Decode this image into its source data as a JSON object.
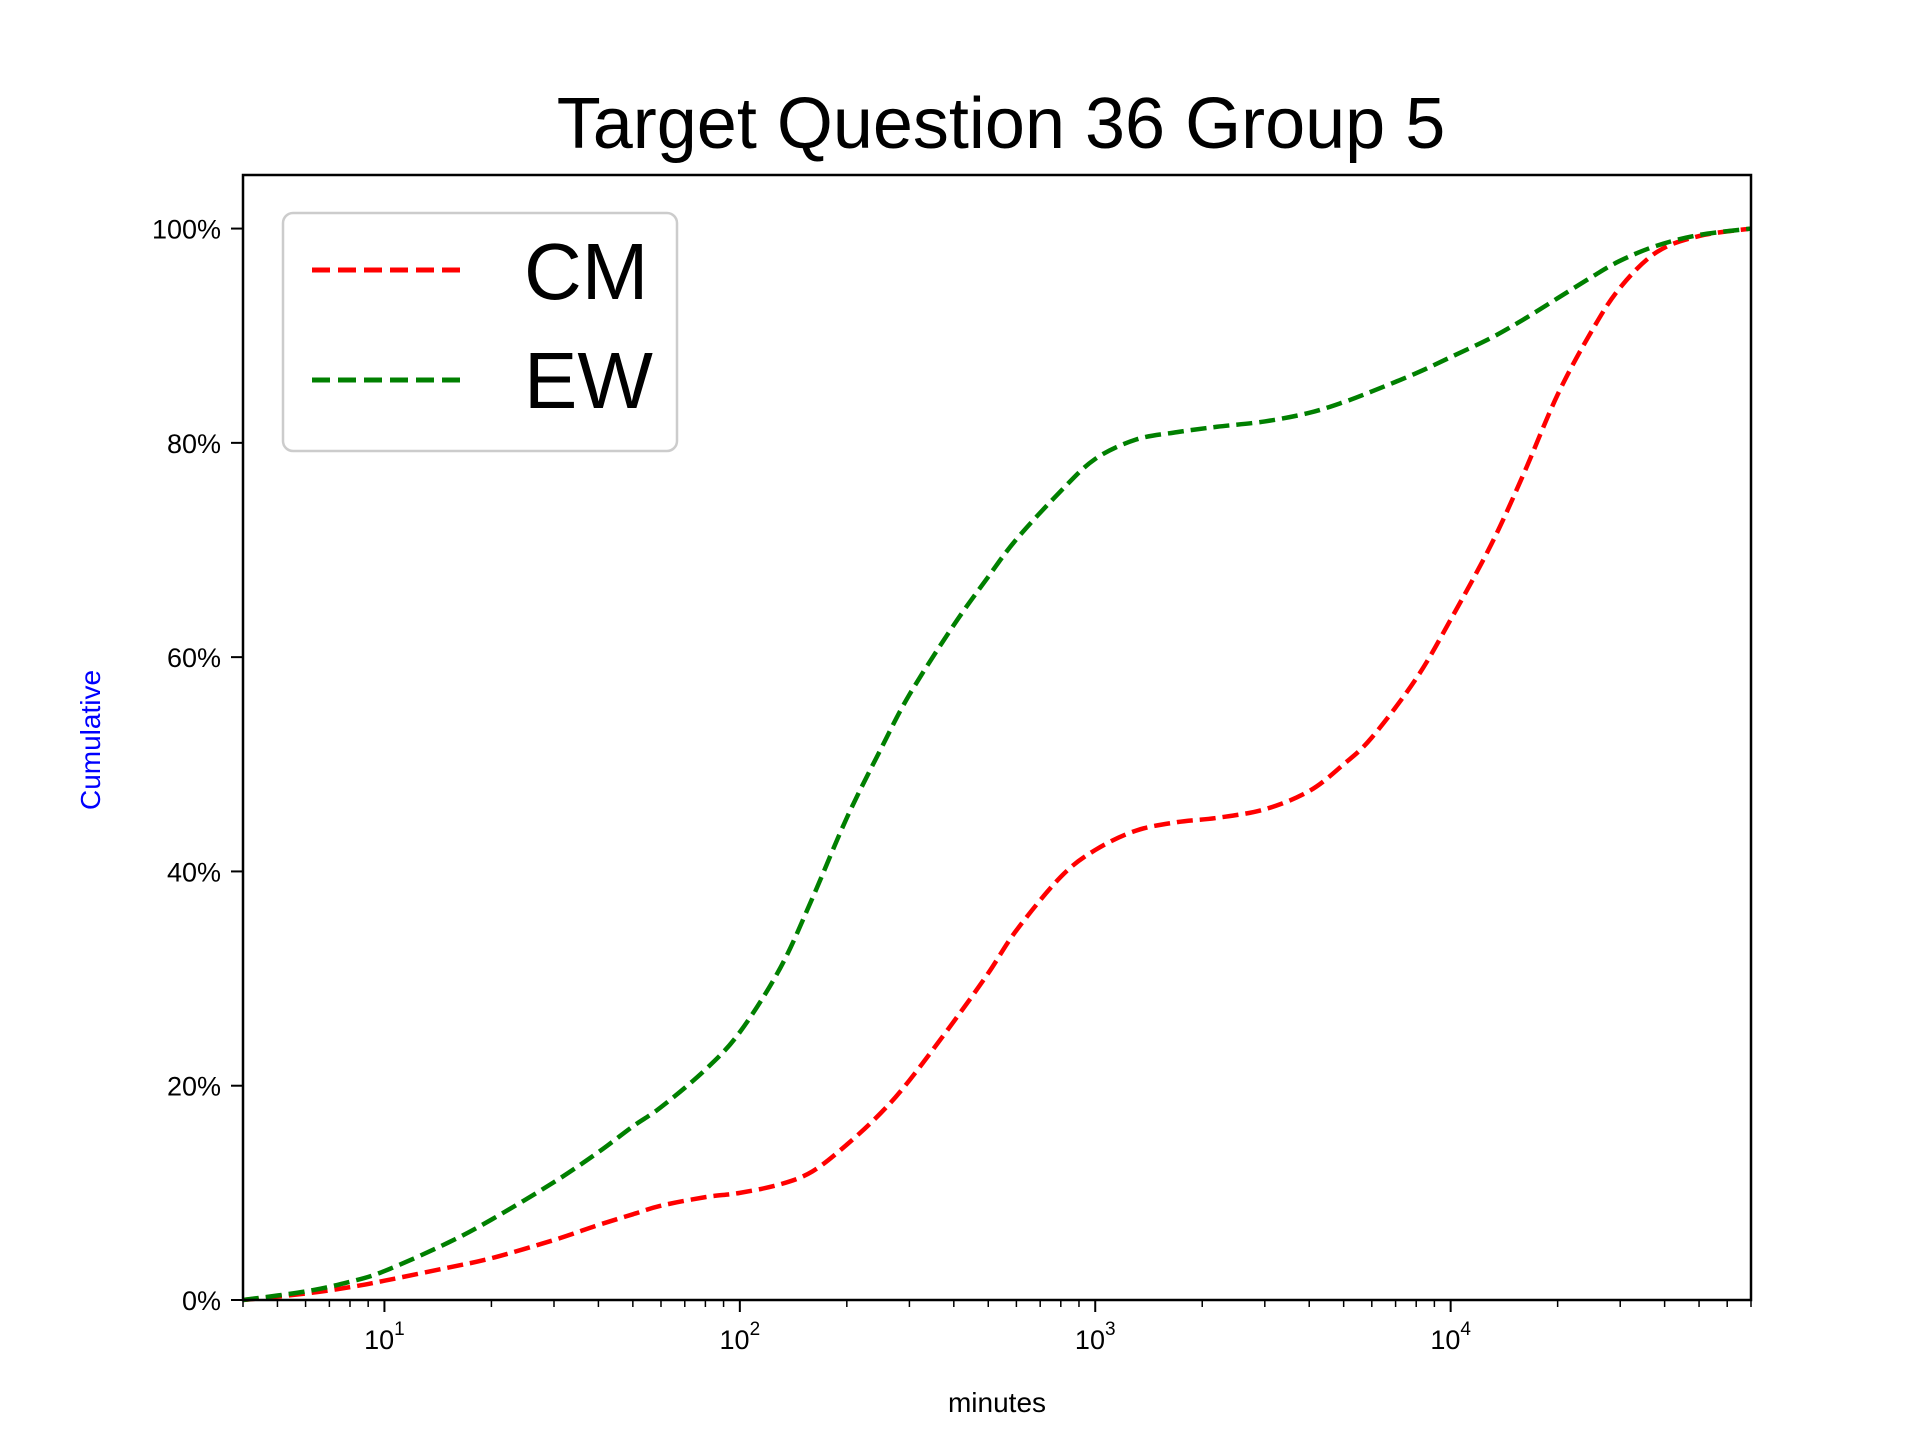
{
  "chart_data": {
    "type": "line",
    "title": "Target Question 36 Group 5",
    "xlabel": "minutes",
    "ylabel": "Cumulative",
    "ylabel_color": "#0000ff",
    "x_scale": "log",
    "xlim": [
      4,
      70000
    ],
    "ylim": [
      0,
      105
    ],
    "x_tick_labels": [
      {
        "value": 10,
        "base": "10",
        "exp": "1"
      },
      {
        "value": 100,
        "base": "10",
        "exp": "2"
      },
      {
        "value": 1000,
        "base": "10",
        "exp": "3"
      },
      {
        "value": 10000,
        "base": "10",
        "exp": "4"
      }
    ],
    "y_ticks": [
      {
        "value": 0,
        "label": "0%"
      },
      {
        "value": 20,
        "label": "20%"
      },
      {
        "value": 40,
        "label": "40%"
      },
      {
        "value": 60,
        "label": "60%"
      },
      {
        "value": 80,
        "label": "80%"
      },
      {
        "value": 100,
        "label": "100%"
      }
    ],
    "grid": false,
    "legend_position": "upper-left",
    "series": [
      {
        "name": "CM",
        "color": "#ff0000",
        "line_style": "dashed",
        "points": [
          {
            "x": 4,
            "y": 0
          },
          {
            "x": 6,
            "y": 0.6
          },
          {
            "x": 8,
            "y": 1.2
          },
          {
            "x": 10,
            "y": 1.8
          },
          {
            "x": 15,
            "y": 3
          },
          {
            "x": 20,
            "y": 3.9
          },
          {
            "x": 30,
            "y": 5.6
          },
          {
            "x": 40,
            "y": 7
          },
          {
            "x": 50,
            "y": 8
          },
          {
            "x": 60,
            "y": 8.8
          },
          {
            "x": 80,
            "y": 9.6
          },
          {
            "x": 100,
            "y": 10
          },
          {
            "x": 130,
            "y": 10.8
          },
          {
            "x": 160,
            "y": 12
          },
          {
            "x": 200,
            "y": 14.5
          },
          {
            "x": 250,
            "y": 17.5
          },
          {
            "x": 300,
            "y": 20.5
          },
          {
            "x": 400,
            "y": 26
          },
          {
            "x": 500,
            "y": 30.5
          },
          {
            "x": 600,
            "y": 34.5
          },
          {
            "x": 800,
            "y": 39.5
          },
          {
            "x": 1000,
            "y": 42
          },
          {
            "x": 1300,
            "y": 43.8
          },
          {
            "x": 1700,
            "y": 44.6
          },
          {
            "x": 2200,
            "y": 45
          },
          {
            "x": 3000,
            "y": 45.8
          },
          {
            "x": 4000,
            "y": 47.5
          },
          {
            "x": 5000,
            "y": 50
          },
          {
            "x": 6000,
            "y": 52.5
          },
          {
            "x": 8000,
            "y": 58
          },
          {
            "x": 10000,
            "y": 63.5
          },
          {
            "x": 13000,
            "y": 70.5
          },
          {
            "x": 16000,
            "y": 77
          },
          {
            "x": 20000,
            "y": 84.5
          },
          {
            "x": 25000,
            "y": 90.5
          },
          {
            "x": 30000,
            "y": 94.5
          },
          {
            "x": 38000,
            "y": 97.8
          },
          {
            "x": 50000,
            "y": 99.3
          },
          {
            "x": 70000,
            "y": 100
          }
        ]
      },
      {
        "name": "EW",
        "color": "#008000",
        "line_style": "dashed",
        "points": [
          {
            "x": 4,
            "y": 0
          },
          {
            "x": 6,
            "y": 0.8
          },
          {
            "x": 8,
            "y": 1.7
          },
          {
            "x": 10,
            "y": 2.7
          },
          {
            "x": 15,
            "y": 5.3
          },
          {
            "x": 20,
            "y": 7.5
          },
          {
            "x": 30,
            "y": 11
          },
          {
            "x": 40,
            "y": 13.8
          },
          {
            "x": 50,
            "y": 16.2
          },
          {
            "x": 60,
            "y": 18
          },
          {
            "x": 80,
            "y": 21.5
          },
          {
            "x": 100,
            "y": 25
          },
          {
            "x": 130,
            "y": 31
          },
          {
            "x": 160,
            "y": 37.5
          },
          {
            "x": 200,
            "y": 45
          },
          {
            "x": 250,
            "y": 51.5
          },
          {
            "x": 300,
            "y": 56.5
          },
          {
            "x": 400,
            "y": 63
          },
          {
            "x": 500,
            "y": 67.5
          },
          {
            "x": 600,
            "y": 71
          },
          {
            "x": 800,
            "y": 75.5
          },
          {
            "x": 1000,
            "y": 78.5
          },
          {
            "x": 1300,
            "y": 80.3
          },
          {
            "x": 1700,
            "y": 81
          },
          {
            "x": 2200,
            "y": 81.5
          },
          {
            "x": 3000,
            "y": 82
          },
          {
            "x": 4000,
            "y": 82.8
          },
          {
            "x": 5000,
            "y": 83.8
          },
          {
            "x": 6000,
            "y": 84.8
          },
          {
            "x": 8000,
            "y": 86.5
          },
          {
            "x": 10000,
            "y": 88
          },
          {
            "x": 13000,
            "y": 89.8
          },
          {
            "x": 16000,
            "y": 91.5
          },
          {
            "x": 20000,
            "y": 93.5
          },
          {
            "x": 25000,
            "y": 95.5
          },
          {
            "x": 30000,
            "y": 97
          },
          {
            "x": 38000,
            "y": 98.4
          },
          {
            "x": 50000,
            "y": 99.4
          },
          {
            "x": 70000,
            "y": 100
          }
        ]
      }
    ]
  }
}
